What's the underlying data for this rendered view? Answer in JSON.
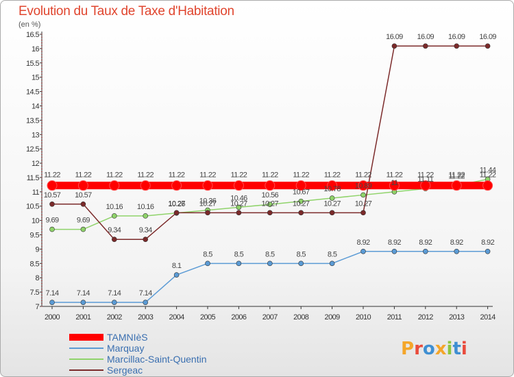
{
  "title": "Evolution du Taux de Taxe d'Habitation",
  "unit": "(en %)",
  "logo": {
    "text": "Proxiti",
    "colors": [
      "#f4a62a",
      "#e94b3c",
      "#3f8fd2",
      "#f4a62a",
      "#8cc63f",
      "#3f8fd2",
      "#e94b3c"
    ]
  },
  "chart_data": {
    "type": "line",
    "title": "Evolution du Taux de Taxe d'Habitation",
    "ylabel": "(en %)",
    "x": [
      "2000",
      "2001",
      "2002",
      "2003",
      "2004",
      "2005",
      "2006",
      "2007",
      "2008",
      "2009",
      "2010",
      "2011",
      "2012",
      "2013",
      "2014"
    ],
    "ylim": [
      7,
      16.5
    ],
    "yticks": [
      "7",
      "7.5",
      "8",
      "8.5",
      "9",
      "9.5",
      "10",
      "10.5",
      "11",
      "11.5",
      "12",
      "12.5",
      "13",
      "13.5",
      "14",
      "14.5",
      "15",
      "15.5",
      "16",
      "16.5"
    ],
    "grid": false,
    "legend_position": "bottom-left",
    "series": [
      {
        "name": "TAMNIèS",
        "color": "#ff0000",
        "values": [
          11.22,
          11.22,
          11.22,
          11.22,
          11.22,
          11.22,
          11.22,
          11.22,
          11.22,
          11.22,
          11.22,
          11.22,
          11.22,
          11.22,
          11.22
        ],
        "labels": [
          "11.22",
          "11.22",
          "11.22",
          "11.22",
          "11.22",
          "11.22",
          "11.22",
          "11.22",
          "11.22",
          "11.22",
          "11.22",
          "11.22",
          "11.22",
          "11.22",
          "11.22"
        ]
      },
      {
        "name": "Marquay",
        "color": "#5b9bd5",
        "values": [
          7.14,
          7.14,
          7.14,
          7.14,
          8.1,
          8.5,
          8.5,
          8.5,
          8.5,
          8.5,
          8.92,
          8.92,
          8.92,
          8.92,
          8.92
        ],
        "labels": [
          "7.14",
          "7.14",
          "7.14",
          "7.14",
          "8.1",
          "8.5",
          "8.5",
          "8.5",
          "8.5",
          "8.5",
          "8.92",
          "8.92",
          "8.92",
          "8.92",
          "8.92"
        ]
      },
      {
        "name": "Marcillac-Saint-Quentin",
        "color": "#8fd36a",
        "values": [
          9.69,
          9.69,
          10.16,
          10.16,
          10.26,
          10.36,
          10.46,
          10.56,
          10.67,
          10.78,
          10.89,
          11,
          11.11,
          11.22,
          11.44
        ],
        "labels": [
          "9.69",
          "9.69",
          "10.16",
          "10.16",
          "10.26",
          "10.36",
          "10.46",
          "10.56",
          "10.67",
          "10.78",
          "10.89",
          "11",
          "11.11",
          "11.22",
          "11.44"
        ]
      },
      {
        "name": "Sergeac",
        "color": "#7b2a2a",
        "values": [
          10.57,
          10.57,
          9.34,
          9.34,
          10.27,
          10.27,
          10.27,
          10.27,
          10.27,
          10.27,
          10.27,
          16.09,
          16.09,
          16.09,
          16.09
        ],
        "labels": [
          "10.57",
          "10.57",
          "9.34",
          "9.34",
          "10.27",
          "10.27",
          "10.27",
          "10.27",
          "10.27",
          "10.27",
          "10.27",
          "16.09",
          "16.09",
          "16.09",
          "16.09"
        ]
      }
    ]
  }
}
